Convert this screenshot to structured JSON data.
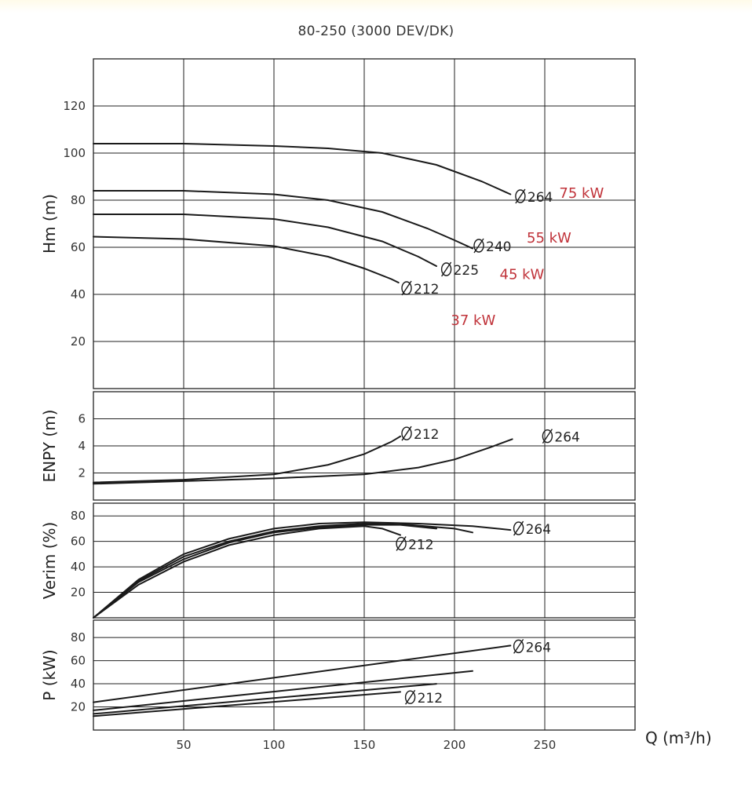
{
  "title": "80-250 (3000 DEV/DK)",
  "xlabel": "Q (m³/h)",
  "x_ticks": [
    50,
    100,
    150,
    200,
    250
  ],
  "colors": {
    "curve": "#1a1a1a",
    "power_label": "#c0333a"
  },
  "chart_data": [
    {
      "id": "head",
      "type": "line",
      "ylabel": "Hm (m)",
      "xlim": [
        0,
        300
      ],
      "ylim": [
        0,
        140
      ],
      "y_ticks": [
        20,
        40,
        60,
        80,
        100,
        120
      ],
      "series": [
        {
          "name": "Ø264",
          "x": [
            0,
            50,
            100,
            130,
            160,
            190,
            215,
            231
          ],
          "y": [
            104,
            104,
            103,
            102,
            100,
            95,
            88,
            82.5
          ]
        },
        {
          "name": "Ø240",
          "x": [
            0,
            50,
            100,
            130,
            160,
            185,
            200,
            210
          ],
          "y": [
            84,
            84,
            82.5,
            80,
            75,
            68,
            63,
            59.5
          ]
        },
        {
          "name": "Ø225",
          "x": [
            0,
            50,
            100,
            130,
            160,
            180,
            190
          ],
          "y": [
            74,
            74,
            72,
            68.5,
            62.5,
            56,
            52
          ]
        },
        {
          "name": "Ø212",
          "x": [
            0,
            50,
            100,
            130,
            150,
            165,
            169
          ],
          "y": [
            64.5,
            63.5,
            60.5,
            56,
            51,
            46.5,
            45
          ]
        }
      ],
      "series_labels": [
        {
          "text": "Ø264",
          "x": 233,
          "y": 81
        },
        {
          "text": "Ø240",
          "x": 210,
          "y": 60
        },
        {
          "text": "Ø225",
          "x": 192,
          "y": 50
        },
        {
          "text": "Ø212",
          "x": 170,
          "y": 42
        }
      ],
      "power_labels": [
        {
          "text": "75 kW",
          "x": 258,
          "y": 83
        },
        {
          "text": "55 kW",
          "x": 240,
          "y": 64
        },
        {
          "text": "45 kW",
          "x": 225,
          "y": 48.5
        },
        {
          "text": "37 kW",
          "x": 198,
          "y": 29
        }
      ]
    },
    {
      "id": "npsh",
      "type": "line",
      "ylabel": "ENPY (m)",
      "xlim": [
        0,
        300
      ],
      "ylim": [
        0,
        8
      ],
      "y_ticks": [
        2,
        4,
        6
      ],
      "series": [
        {
          "name": "Ø212",
          "x": [
            0,
            50,
            100,
            130,
            150,
            165,
            170
          ],
          "y": [
            1.3,
            1.5,
            1.9,
            2.6,
            3.4,
            4.3,
            4.7
          ]
        },
        {
          "name": "Ø264",
          "x": [
            0,
            50,
            100,
            150,
            180,
            200,
            220,
            232
          ],
          "y": [
            1.2,
            1.4,
            1.6,
            1.9,
            2.4,
            3.0,
            3.9,
            4.5
          ]
        }
      ],
      "series_labels": [
        {
          "text": "Ø212",
          "x": 170,
          "y": 4.8
        },
        {
          "text": "Ø264",
          "x": 248,
          "y": 4.6
        }
      ]
    },
    {
      "id": "efficiency",
      "type": "line",
      "ylabel": "Verim (%)",
      "xlim": [
        0,
        300
      ],
      "ylim": [
        0,
        90
      ],
      "y_ticks": [
        20,
        40,
        60,
        80
      ],
      "series": [
        {
          "name": "Ø264",
          "x": [
            0,
            25,
            50,
            75,
            100,
            125,
            150,
            180,
            210,
            231
          ],
          "y": [
            0,
            30,
            50,
            62,
            70,
            74,
            75,
            74,
            72,
            69
          ]
        },
        {
          "name": "Ø240",
          "x": [
            0,
            25,
            50,
            75,
            100,
            125,
            150,
            175,
            200,
            210
          ],
          "y": [
            0,
            29,
            48,
            60,
            68,
            72,
            74,
            73,
            70,
            67
          ]
        },
        {
          "name": "Ø225",
          "x": [
            0,
            25,
            50,
            75,
            100,
            125,
            150,
            170,
            190
          ],
          "y": [
            0,
            28,
            46,
            59,
            67,
            71,
            73,
            73,
            70
          ]
        },
        {
          "name": "Ø212",
          "x": [
            0,
            25,
            50,
            75,
            100,
            125,
            150,
            160,
            170
          ],
          "y": [
            0,
            26,
            44,
            57,
            65,
            70,
            72,
            70,
            65
          ]
        }
      ],
      "series_labels": [
        {
          "text": "Ø264",
          "x": 232,
          "y": 69
        },
        {
          "text": "Ø212",
          "x": 167,
          "y": 57
        }
      ]
    },
    {
      "id": "power",
      "type": "line",
      "ylabel": "P (kW)",
      "xlim": [
        0,
        300
      ],
      "ylim": [
        0,
        95
      ],
      "y_ticks": [
        20,
        40,
        60,
        80
      ],
      "series": [
        {
          "name": "Ø264",
          "x": [
            0,
            231
          ],
          "y": [
            24,
            73
          ]
        },
        {
          "name": "Ø240",
          "x": [
            0,
            210
          ],
          "y": [
            17,
            51
          ]
        },
        {
          "name": "Ø225",
          "x": [
            0,
            190
          ],
          "y": [
            14,
            40
          ]
        },
        {
          "name": "Ø212",
          "x": [
            0,
            170
          ],
          "y": [
            12,
            33
          ]
        }
      ],
      "series_labels": [
        {
          "text": "Ø264",
          "x": 232,
          "y": 71
        },
        {
          "text": "Ø212",
          "x": 172,
          "y": 27
        }
      ]
    }
  ]
}
